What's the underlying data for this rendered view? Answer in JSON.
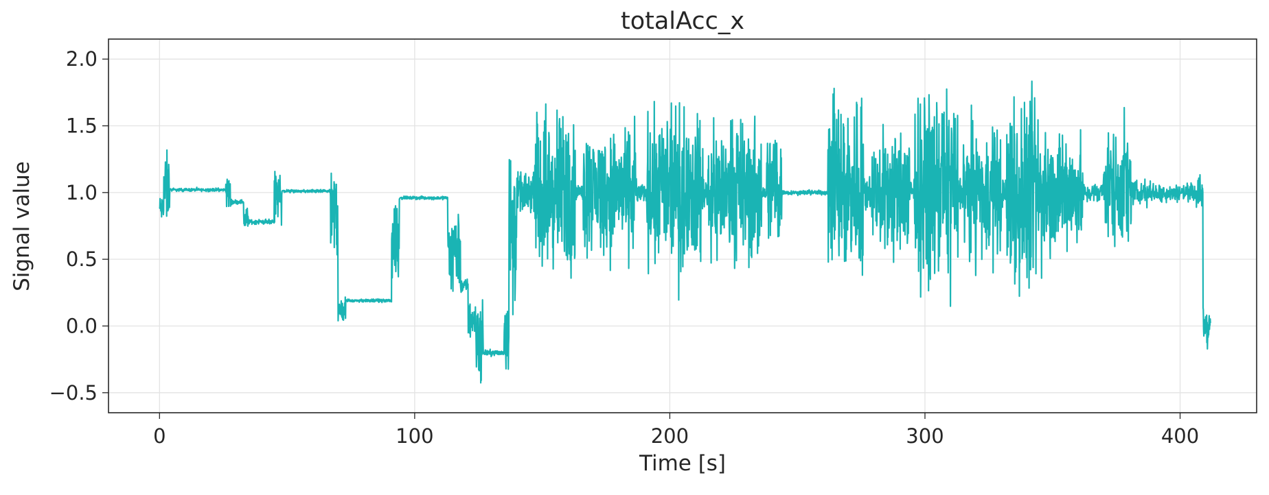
{
  "chart_data": {
    "type": "line",
    "title": "totalAcc_x",
    "xlabel": "Time [s]",
    "ylabel": "Signal value",
    "xlim": [
      -20,
      430
    ],
    "ylim": [
      -0.65,
      2.15
    ],
    "xticks": [
      0,
      100,
      200,
      300,
      400
    ],
    "xtick_labels": [
      "0",
      "100",
      "200",
      "300",
      "400"
    ],
    "yticks": [
      -0.5,
      0.0,
      0.5,
      1.0,
      1.5,
      2.0
    ],
    "ytick_labels": [
      "−0.5",
      "0.0",
      "0.5",
      "1.0",
      "1.5",
      "2.0"
    ],
    "grid": true,
    "line_color": "#1ab4b4",
    "series": [
      {
        "segments": [
          {
            "t0": 0,
            "t1": 1.5,
            "level": 0.88,
            "amp": 0.09
          },
          {
            "t0": 1.5,
            "t1": 4,
            "level": 1.02,
            "amp": 0.25
          },
          {
            "t0": 4,
            "t1": 26,
            "level": 1.02,
            "amp": 0.01
          },
          {
            "t0": 26,
            "t1": 28,
            "level": 1.0,
            "amp": 0.12
          },
          {
            "t0": 28,
            "t1": 33,
            "level": 0.93,
            "amp": 0.015
          },
          {
            "t0": 33,
            "t1": 35,
            "level": 0.8,
            "amp": 0.08
          },
          {
            "t0": 35,
            "t1": 45,
            "level": 0.78,
            "amp": 0.015
          },
          {
            "t0": 45,
            "t1": 48,
            "level": 1.0,
            "amp": 0.22
          },
          {
            "t0": 48,
            "t1": 67,
            "level": 1.01,
            "amp": 0.01
          },
          {
            "t0": 67,
            "t1": 70,
            "level": 0.85,
            "amp": 0.3
          },
          {
            "t0": 70,
            "t1": 73,
            "level": 0.12,
            "amp": 0.1
          },
          {
            "t0": 73,
            "t1": 91,
            "level": 0.19,
            "amp": 0.01
          },
          {
            "t0": 91,
            "t1": 94,
            "level": 0.65,
            "amp": 0.3
          },
          {
            "t0": 94,
            "t1": 113,
            "level": 0.96,
            "amp": 0.01
          },
          {
            "t0": 113,
            "t1": 118,
            "level": 0.6,
            "amp": 0.3
          },
          {
            "t0": 118,
            "t1": 121,
            "level": 0.3,
            "amp": 0.05
          },
          {
            "t0": 121,
            "t1": 124,
            "level": 0.05,
            "amp": 0.15
          },
          {
            "t0": 124,
            "t1": 127,
            "level": -0.12,
            "amp": 0.25
          },
          {
            "t0": 127,
            "t1": 135,
            "level": -0.2,
            "amp": 0.02
          },
          {
            "t0": 135,
            "t1": 137,
            "level": 0.0,
            "amp": 0.3
          },
          {
            "t0": 137,
            "t1": 140,
            "level": 0.7,
            "amp": 0.55
          },
          {
            "t0": 140,
            "t1": 147,
            "level": 1.0,
            "amp": 0.12
          },
          {
            "t0": 147,
            "t1": 163,
            "level": 1.0,
            "amp": 0.5
          },
          {
            "t0": 163,
            "t1": 166,
            "level": 1.0,
            "amp": 0.05
          },
          {
            "t0": 166,
            "t1": 187,
            "level": 1.02,
            "amp": 0.4
          },
          {
            "t0": 187,
            "t1": 191,
            "level": 1.0,
            "amp": 0.06
          },
          {
            "t0": 191,
            "t1": 213,
            "level": 1.02,
            "amp": 0.5
          },
          {
            "t0": 213,
            "t1": 215,
            "level": 1.0,
            "amp": 0.1
          },
          {
            "t0": 215,
            "t1": 236,
            "level": 1.0,
            "amp": 0.45
          },
          {
            "t0": 236,
            "t1": 238,
            "level": 1.0,
            "amp": 0.05
          },
          {
            "t0": 238,
            "t1": 244,
            "level": 1.05,
            "amp": 0.4
          },
          {
            "t0": 244,
            "t1": 262,
            "level": 1.0,
            "amp": 0.015
          },
          {
            "t0": 262,
            "t1": 276,
            "level": 1.05,
            "amp": 0.6
          },
          {
            "t0": 276,
            "t1": 279,
            "level": 1.0,
            "amp": 0.12
          },
          {
            "t0": 279,
            "t1": 294,
            "level": 1.0,
            "amp": 0.42
          },
          {
            "t0": 294,
            "t1": 296,
            "level": 1.0,
            "amp": 0.1
          },
          {
            "t0": 296,
            "t1": 313,
            "level": 1.05,
            "amp": 0.6
          },
          {
            "t0": 313,
            "t1": 315,
            "level": 1.0,
            "amp": 0.12
          },
          {
            "t0": 315,
            "t1": 330,
            "level": 1.0,
            "amp": 0.42
          },
          {
            "t0": 330,
            "t1": 332,
            "level": 1.0,
            "amp": 0.1
          },
          {
            "t0": 332,
            "t1": 346,
            "level": 1.0,
            "amp": 0.6
          },
          {
            "t0": 346,
            "t1": 362,
            "level": 1.0,
            "amp": 0.38
          },
          {
            "t0": 362,
            "t1": 370,
            "level": 1.0,
            "amp": 0.06
          },
          {
            "t0": 370,
            "t1": 381,
            "level": 1.05,
            "amp": 0.38
          },
          {
            "t0": 381,
            "t1": 388,
            "level": 1.0,
            "amp": 0.08
          },
          {
            "t0": 388,
            "t1": 406,
            "level": 1.0,
            "amp": 0.06
          },
          {
            "t0": 406,
            "t1": 409,
            "level": 1.0,
            "amp": 0.1
          },
          {
            "t0": 409,
            "t1": 412,
            "level": 0.0,
            "amp": 0.15
          }
        ]
      }
    ]
  }
}
